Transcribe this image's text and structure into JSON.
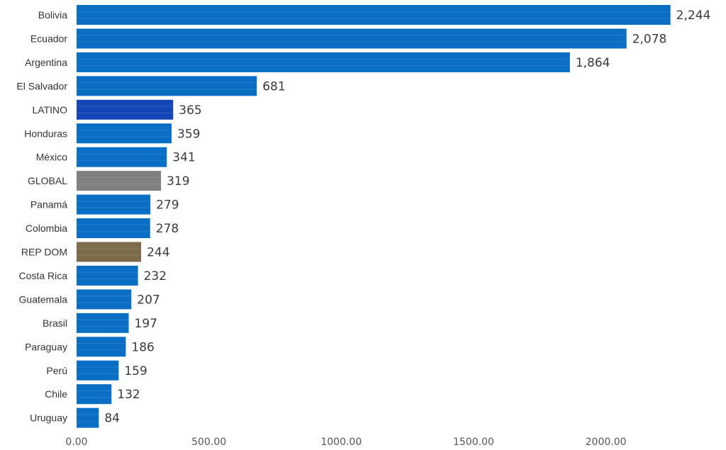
{
  "chart_data": {
    "type": "bar",
    "orientation": "horizontal",
    "title": "",
    "xlabel": "",
    "ylabel": "",
    "categories": [
      "Bolivia",
      "Ecuador",
      "Argentina",
      "El Salvador",
      "LATINO",
      "Honduras",
      "México",
      "GLOBAL",
      "Panamá",
      "Colombia",
      "REP DOM",
      "Costa Rica",
      "Guatemala",
      "Brasil",
      "Paraguay",
      "Perú",
      "Chile",
      "Uruguay"
    ],
    "values": [
      2244,
      2078,
      1864,
      681,
      365,
      359,
      341,
      319,
      279,
      278,
      244,
      232,
      207,
      197,
      186,
      159,
      132,
      84
    ],
    "value_labels": [
      "2,244",
      "2,078",
      "1,864",
      "681",
      "365",
      "359",
      "341",
      "319",
      "279",
      "278",
      "244",
      "232",
      "207",
      "197",
      "186",
      "159",
      "132",
      "84"
    ],
    "bar_colors": [
      "#0a6fc4",
      "#0a6fc4",
      "#0a6fc4",
      "#0a6fc4",
      "#1446b8",
      "#0a6fc4",
      "#0a6fc4",
      "#808080",
      "#0a6fc4",
      "#0a6fc4",
      "#7d6c4b",
      "#0a6fc4",
      "#0a6fc4",
      "#0a6fc4",
      "#0a6fc4",
      "#0a6fc4",
      "#0a6fc4",
      "#0a6fc4"
    ],
    "xlim": [
      0,
      2244
    ],
    "x_ticks": [
      0,
      500,
      1000,
      1500,
      2000
    ],
    "x_tick_labels": [
      "0.00",
      "500.00",
      "1000.00",
      "1500.00",
      "2000.00"
    ],
    "grid": false,
    "legend": "none"
  }
}
